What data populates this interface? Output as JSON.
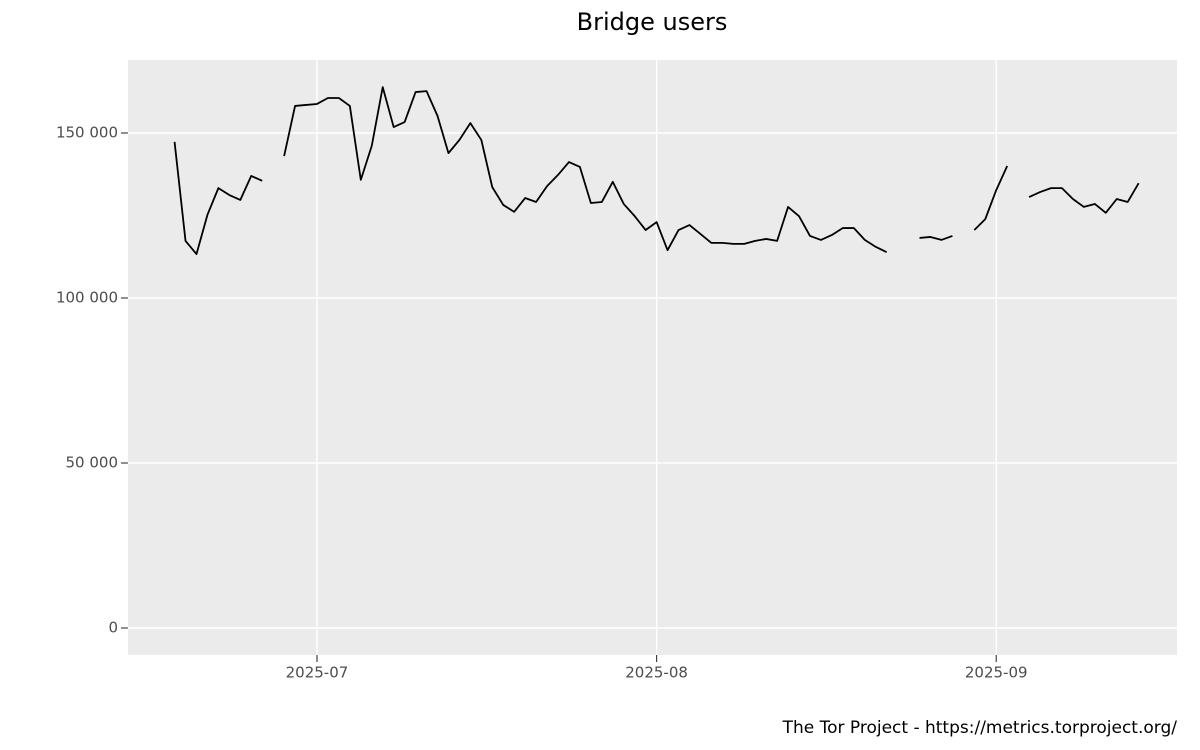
{
  "chart_data": {
    "type": "line",
    "title": "Bridge users",
    "caption": "The Tor Project - https://metrics.torproject.org/",
    "x": [
      169,
      170,
      171,
      172,
      173,
      174,
      175,
      176,
      177,
      178,
      179,
      180,
      181,
      182,
      183,
      184,
      185,
      186,
      187,
      188,
      189,
      190,
      191,
      192,
      193,
      194,
      195,
      196,
      197,
      198,
      199,
      200,
      201,
      202,
      203,
      204,
      205,
      206,
      207,
      208,
      209,
      210,
      211,
      212,
      213,
      214,
      215,
      216,
      217,
      218,
      219,
      220,
      221,
      222,
      223,
      224,
      225,
      226,
      227,
      228,
      229,
      230,
      231,
      232,
      233,
      234,
      235,
      236,
      237,
      238,
      239,
      240,
      241,
      242,
      243,
      244,
      245,
      246,
      247,
      248,
      249,
      250,
      251,
      252,
      253,
      254,
      255,
      256,
      257
    ],
    "series": [
      {
        "name": "Bridge users",
        "color": "#000000",
        "values": [
          147300,
          117300,
          113300,
          125200,
          133300,
          131200,
          129700,
          137000,
          135500,
          null,
          143000,
          158200,
          158500,
          158800,
          160600,
          160600,
          158200,
          135800,
          146100,
          163900,
          151800,
          153300,
          162400,
          162700,
          155200,
          143900,
          147900,
          153000,
          147900,
          133600,
          128200,
          126100,
          130300,
          129100,
          133900,
          137300,
          141200,
          139700,
          128800,
          129100,
          135200,
          128500,
          124800,
          120600,
          123000,
          114500,
          120600,
          122100,
          119400,
          116700,
          116700,
          116400,
          116400,
          117300,
          117900,
          117300,
          127600,
          124800,
          118800,
          117600,
          119100,
          121200,
          121200,
          117600,
          115500,
          113900,
          null,
          null,
          118200,
          118500,
          117600,
          118800,
          null,
          120600,
          123900,
          132700,
          140000,
          null,
          130600,
          132100,
          133300,
          133300,
          130000,
          127600,
          128500,
          125800,
          130000,
          129100,
          134800
        ]
      }
    ],
    "xlim": [
      164.75,
      260.5
    ],
    "xticks": [
      {
        "value": 182,
        "label": "2025-07"
      },
      {
        "value": 213,
        "label": "2025-08"
      },
      {
        "value": 244,
        "label": "2025-09"
      }
    ],
    "ylim": [
      -8182,
      172121
    ],
    "yticks": [
      0,
      {
        "value": 50000,
        "label": "50 000"
      },
      {
        "value": 100000,
        "label": "100 000"
      },
      {
        "value": 150000,
        "label": "150 000"
      }
    ],
    "grid": true,
    "panel_color": "#ebebeb"
  }
}
